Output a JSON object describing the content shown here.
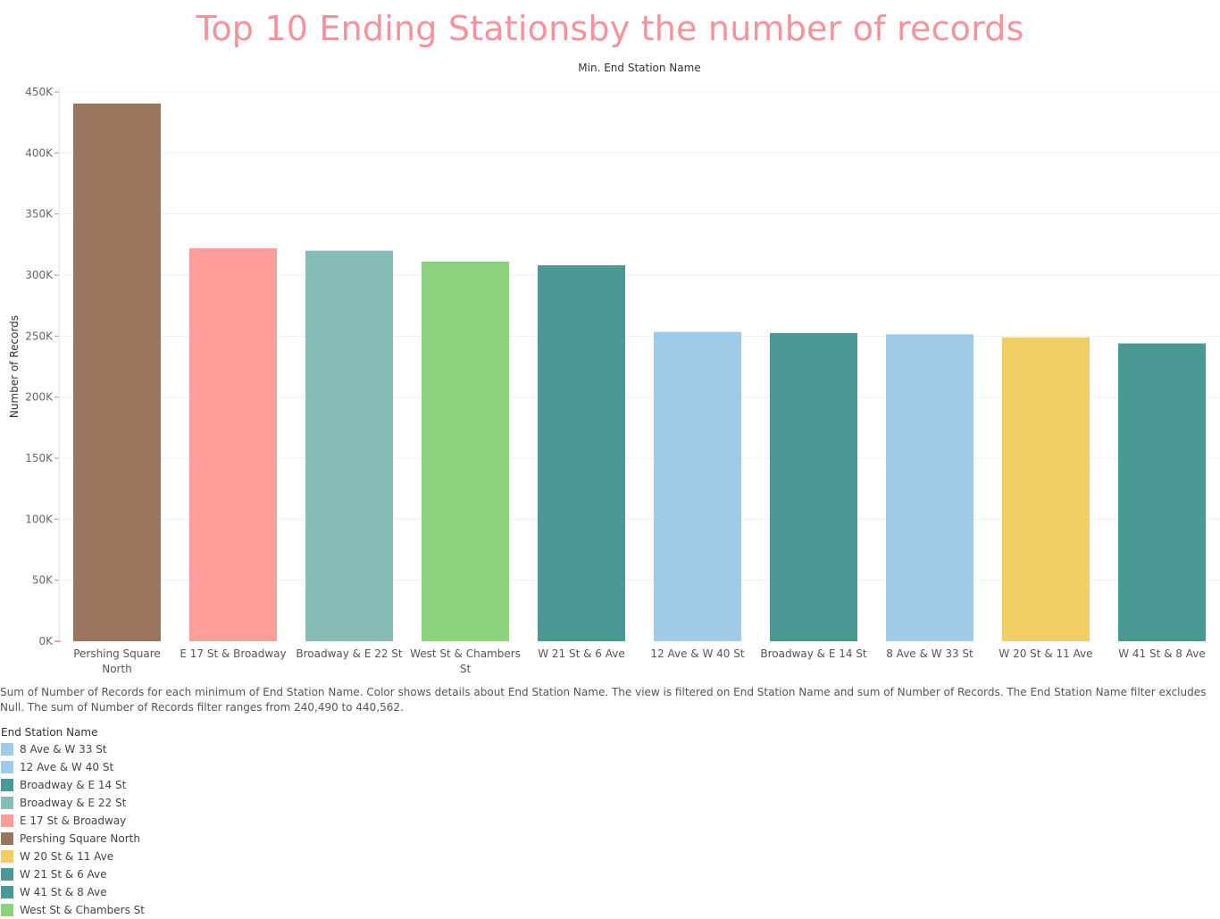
{
  "title": "Top 10 Ending Stationsby the number of records",
  "column_header": "Min. End Station Name",
  "caption": "Sum of Number of Records for each minimum of End Station Name.  Color shows details about End Station Name. The view is filtered on End Station Name and sum of Number of Records. The End Station Name filter excludes Null. The sum of Number of Records filter ranges from 240,490 to 440,562.",
  "chart_data": {
    "type": "bar",
    "xlabel": "",
    "ylabel": "Number of Records",
    "ylim": [
      0,
      450000
    ],
    "yticks": [
      0,
      50000,
      100000,
      150000,
      200000,
      250000,
      300000,
      350000,
      400000,
      450000
    ],
    "ytick_labels": [
      "0K",
      "50K",
      "100K",
      "150K",
      "200K",
      "250K",
      "300K",
      "350K",
      "400K",
      "450K"
    ],
    "grid": true,
    "categories": [
      {
        "label_lines": [
          "Pershing Square",
          "North"
        ],
        "value": 440562,
        "color": "#9c755f"
      },
      {
        "label_lines": [
          "E 17 St & Broadway"
        ],
        "value": 322000,
        "color": "#ff9d9a"
      },
      {
        "label_lines": [
          "Broadway & E 22 St"
        ],
        "value": 320000,
        "color": "#86bcb6"
      },
      {
        "label_lines": [
          "West St & Chambers",
          "St"
        ],
        "value": 311000,
        "color": "#8cd17d"
      },
      {
        "label_lines": [
          "W 21 St & 6 Ave"
        ],
        "value": 308000,
        "color": "#499894"
      },
      {
        "label_lines": [
          "12 Ave & W 40 St"
        ],
        "value": 253500,
        "color": "#a0cbe8"
      },
      {
        "label_lines": [
          "Broadway & E 14 St"
        ],
        "value": 252500,
        "color": "#499894"
      },
      {
        "label_lines": [
          "8 Ave & W 33 St"
        ],
        "value": 251500,
        "color": "#a0cbe8"
      },
      {
        "label_lines": [
          "W 20 St & 11 Ave"
        ],
        "value": 249000,
        "color": "#f1ce63"
      },
      {
        "label_lines": [
          "W 41 St & 8 Ave"
        ],
        "value": 244000,
        "color": "#499894"
      }
    ]
  },
  "legend": {
    "title": "End Station Name",
    "items": [
      {
        "label": "8 Ave & W 33 St",
        "color": "#a0cbe8"
      },
      {
        "label": "12 Ave & W 40 St",
        "color": "#a0cbe8"
      },
      {
        "label": "Broadway & E 14 St",
        "color": "#499894"
      },
      {
        "label": "Broadway & E 22 St",
        "color": "#86bcb6"
      },
      {
        "label": "E 17 St & Broadway",
        "color": "#ff9d9a"
      },
      {
        "label": "Pershing Square North",
        "color": "#9c755f"
      },
      {
        "label": "W 20 St & 11 Ave",
        "color": "#f1ce63"
      },
      {
        "label": "W 21 St & 6 Ave",
        "color": "#499894"
      },
      {
        "label": "W 41 St & 8 Ave",
        "color": "#499894"
      },
      {
        "label": "West St & Chambers St",
        "color": "#8cd17d"
      }
    ]
  }
}
